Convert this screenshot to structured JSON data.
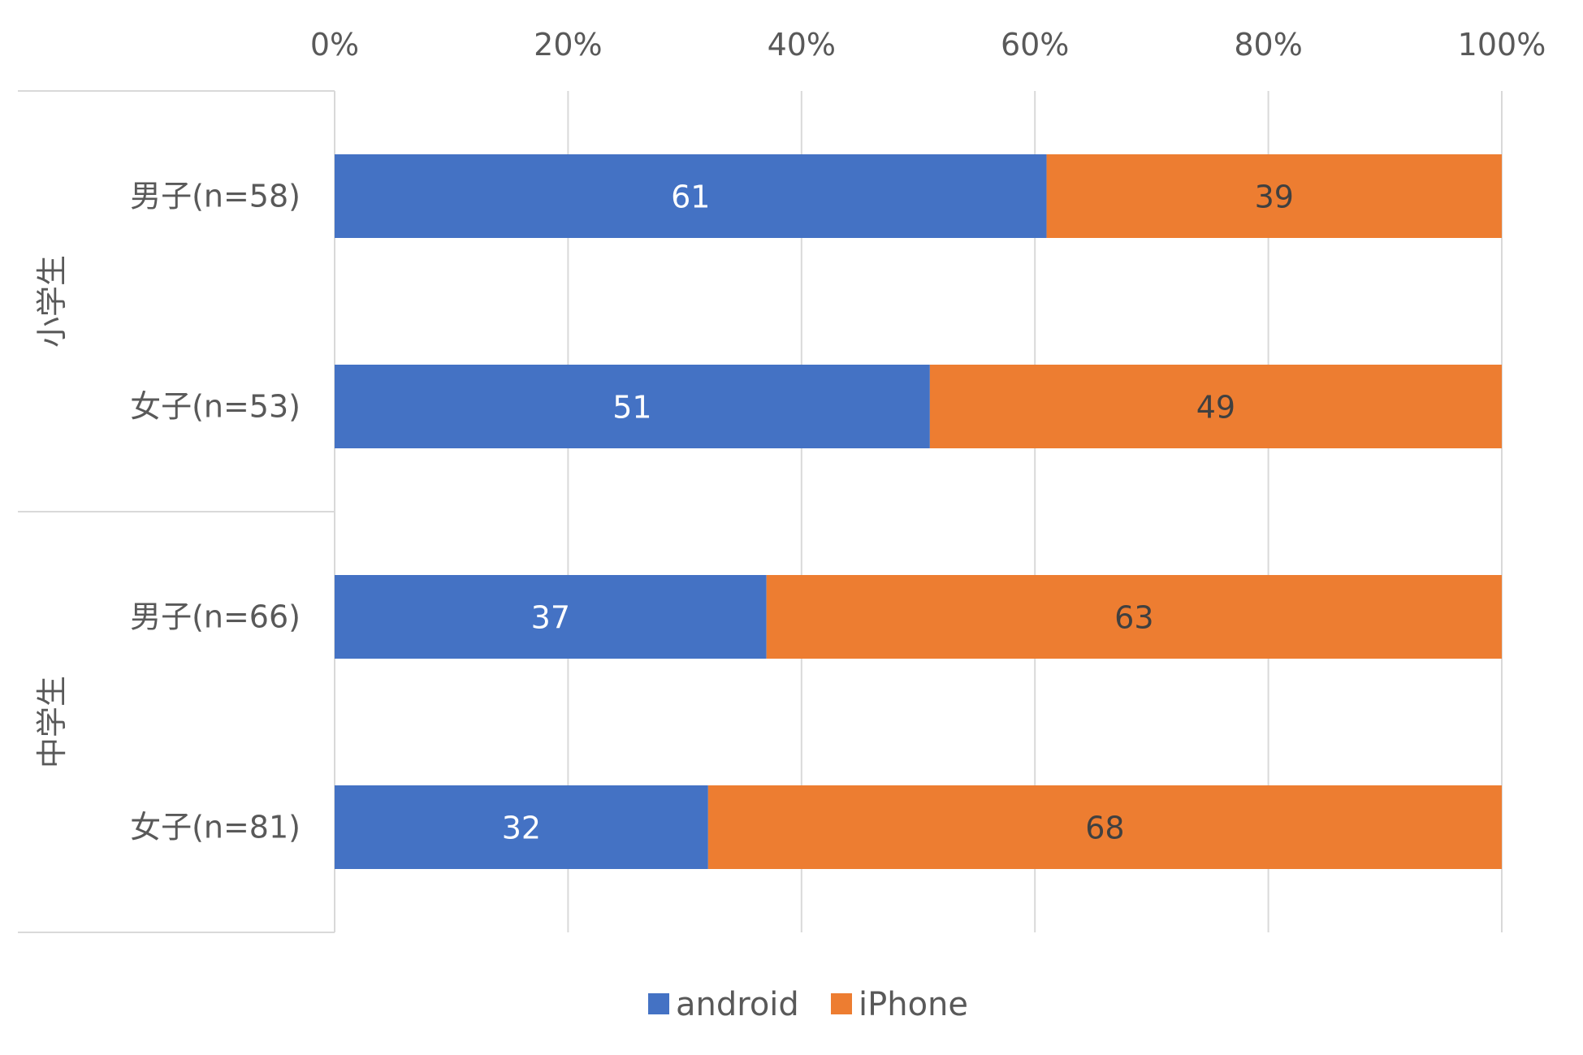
{
  "chart_data": {
    "type": "bar",
    "orientation": "horizontal",
    "stacked": "percent",
    "title": "",
    "xlim": [
      0,
      100
    ],
    "x_ticks": [
      "0%",
      "20%",
      "40%",
      "60%",
      "80%",
      "100%"
    ],
    "x_tick_values": [
      0,
      20,
      40,
      60,
      80,
      100
    ],
    "x_axis_position": "top",
    "grid": true,
    "groups": [
      {
        "label": "小学生",
        "categories": [
          "男子(n=58)",
          "女子(n=53)"
        ]
      },
      {
        "label": "中学生",
        "categories": [
          "男子(n=66)",
          "女子(n=81)"
        ]
      }
    ],
    "categories": [
      "男子(n=58)",
      "女子(n=53)",
      "男子(n=66)",
      "女子(n=81)"
    ],
    "series": [
      {
        "name": "android",
        "color": "#4472C4",
        "label_color": "#ffffff",
        "values": [
          61,
          51,
          37,
          32
        ]
      },
      {
        "name": "iPhone",
        "color": "#ED7D31",
        "label_color": "#404040",
        "values": [
          39,
          49,
          63,
          68
        ]
      }
    ],
    "legend_position": "bottom"
  }
}
